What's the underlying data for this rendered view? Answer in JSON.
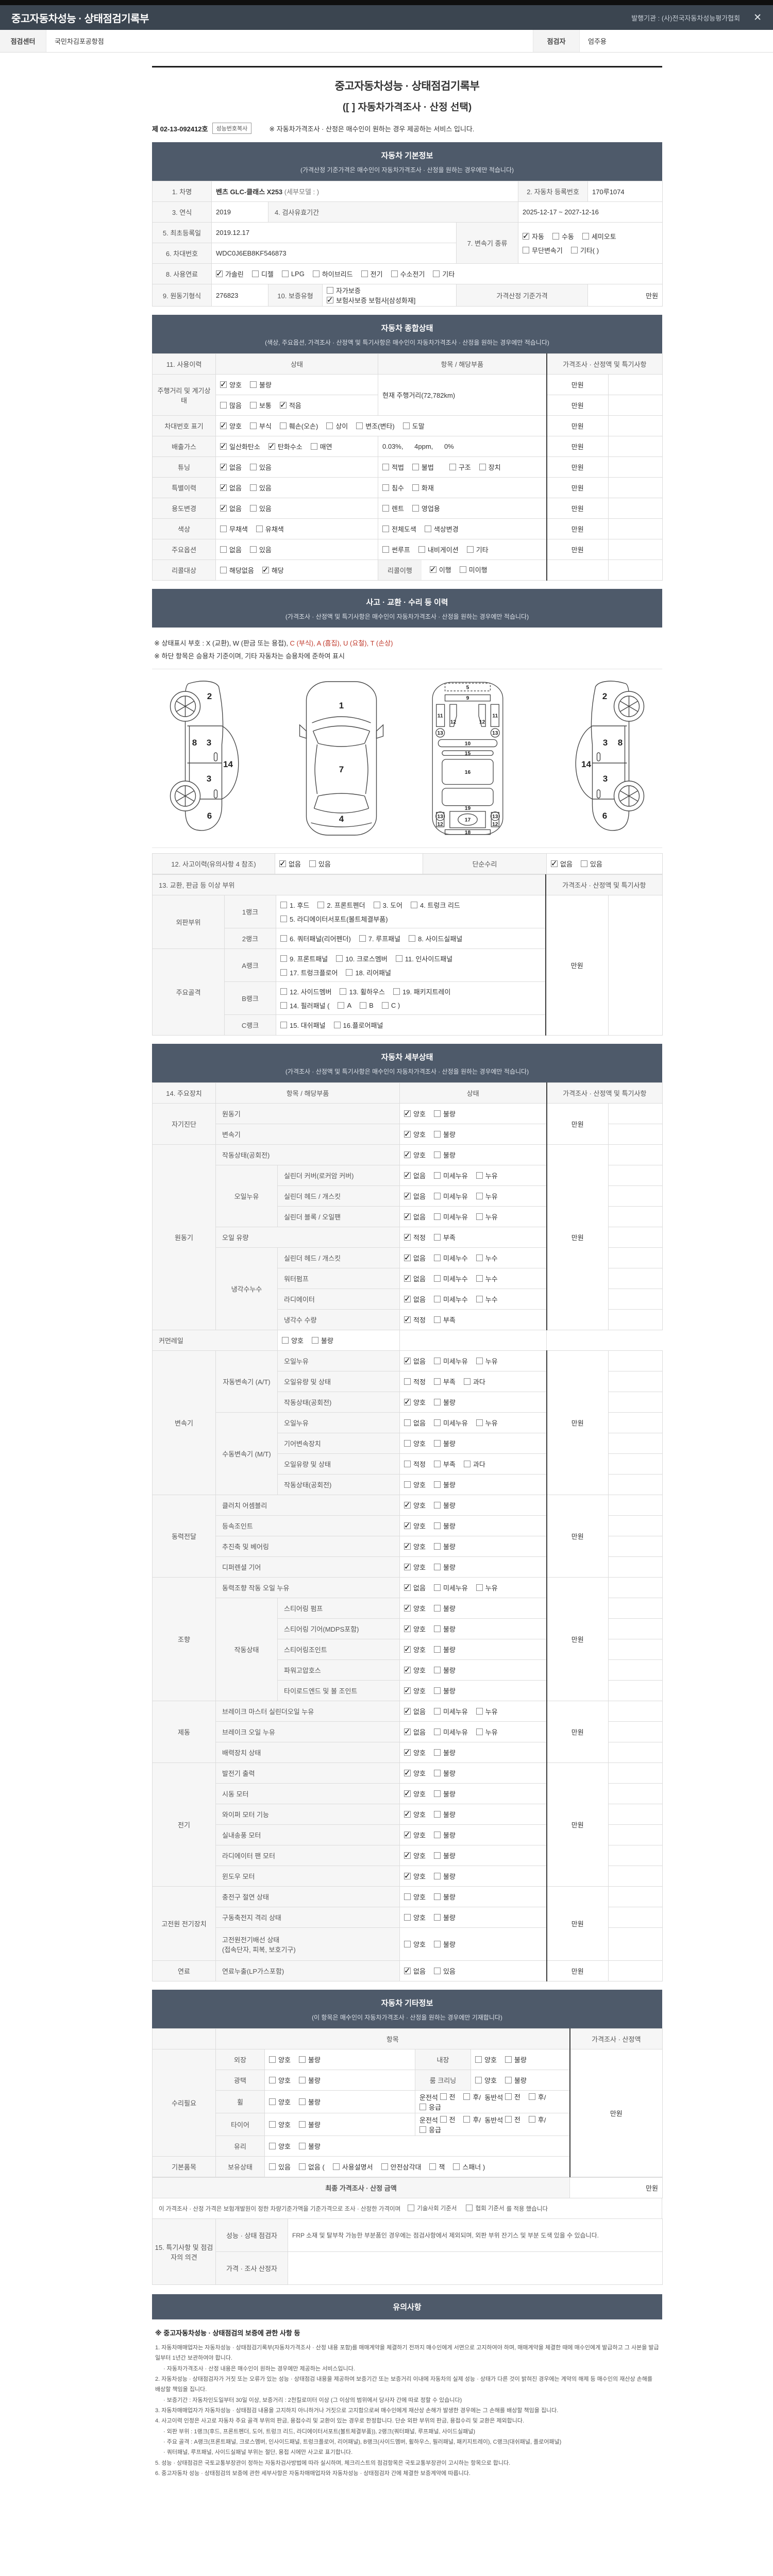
{
  "app": {
    "title": "중고자동차성능 · 상태점검기록부",
    "issuer": "발행기관 : (사)전국자동차성능평가협회",
    "close": "✕"
  },
  "toolbar": {
    "center_label": "점검센터",
    "center_value": "국민차김포공항점",
    "inspector_label": "점검자",
    "inspector_value": "엄주용"
  },
  "doc": {
    "title": "중고자동차성능 · 상태점검기록부",
    "subtitle": "([    ] 자동차가격조사 · 산정 선택)",
    "number": "제 02-13-092412호",
    "copy_btn": "성능번호복사",
    "notice": "※ 자동차가격조사 · 산정은 매수인이 원하는 경우 제공하는 서비스 입니다."
  },
  "basic": {
    "title": "자동차 기본정보",
    "subtitle": "(가격산정 기준가격은 매수인이 자동차가격조사 · 산정을 원하는 경우에만 적습니다)",
    "c1": "1. 차명",
    "v1": "벤츠 GLC-클래스 X253",
    "v1b": " (세부모델 : )",
    "c2": "2. 자동차 등록번호",
    "v2": "170루1074",
    "c3": "3. 연식",
    "v3": "2019",
    "c4": "4. 검사유효기간",
    "v4": "2025-12-17 ~ 2027-12-16",
    "c5": "5. 최초등록일",
    "v5": "2019.12.17",
    "c7": "7. 변속기 종류",
    "trans1": [
      {
        "t": "자동",
        "c": true
      },
      {
        "t": "수동",
        "c": false
      },
      {
        "t": "세미오토",
        "c": false
      }
    ],
    "trans2": [
      {
        "t": "무단변속기",
        "c": false
      },
      {
        "t": "기타( )",
        "c": false
      }
    ],
    "c6": "6. 차대번호",
    "v6": "WDC0J6EB8KF546873",
    "c8": "8. 사용연료",
    "fuel": [
      {
        "t": "가솔린",
        "c": true
      },
      {
        "t": "디젤",
        "c": false
      },
      {
        "t": "LPG",
        "c": false
      },
      {
        "t": "하이브리드",
        "c": false
      },
      {
        "t": "전기",
        "c": false
      },
      {
        "t": "수소전기",
        "c": false
      },
      {
        "t": "기타",
        "c": false
      }
    ],
    "c9": "9. 원동기형식",
    "v9": "276823",
    "c10": "10. 보증유형",
    "warranty": [
      {
        "t": "자가보증",
        "c": false
      },
      {
        "t": "보험사보증  보험사[삼성화재]",
        "c": true
      }
    ],
    "c11": "가격산정 기준가격",
    "v11": "만원"
  },
  "overall": {
    "title": "자동차 종합상태",
    "subtitle": "(색상, 주요옵션, 가격조사 · 산정액 및 특기사항은 매수인이 자동차가격조사 · 산정을 원하는 경우에만 적습니다)",
    "h1": "11. 사용이력",
    "h2": "상태",
    "h3": "항목 / 해당부품",
    "h4": "가격조사 · 산정액 및 특기사항",
    "manwon": "만원",
    "mileage_label": "주행거리 및 계기상태",
    "mileage1": [
      {
        "t": "양호",
        "c": true
      },
      {
        "t": "불량",
        "c": false
      }
    ],
    "mileage2": [
      {
        "t": "많음",
        "c": false
      },
      {
        "t": "보통",
        "c": false
      },
      {
        "t": "적음",
        "c": true
      }
    ],
    "mileage_item": "현재 주행거리(72,782km)",
    "vin_label": "차대번호 표기",
    "vin": [
      {
        "t": "양호",
        "c": true
      },
      {
        "t": "부식",
        "c": false
      },
      {
        "t": "훼손(오손)",
        "c": false
      },
      {
        "t": "상이",
        "c": false
      },
      {
        "t": "변조(변타)",
        "c": false
      },
      {
        "t": "도말",
        "c": false
      }
    ],
    "emission_label": "배출가스",
    "emission": [
      {
        "t": "일산화탄소",
        "c": true
      },
      {
        "t": "탄화수소",
        "c": true
      },
      {
        "t": "매연",
        "c": false
      }
    ],
    "emission_value": "0.03%,      4ppm,      0%",
    "tuning_label": "튜닝",
    "tuning1": [
      {
        "t": "없음",
        "c": true
      },
      {
        "t": "있음",
        "c": false
      }
    ],
    "tuning2": [
      {
        "t": "적법",
        "c": false
      },
      {
        "t": "불법",
        "c": false
      }
    ],
    "tuning3": [
      {
        "t": "구조",
        "c": false
      },
      {
        "t": "장치",
        "c": false
      }
    ],
    "special_label": "특별이력",
    "special1": [
      {
        "t": "없음",
        "c": true
      },
      {
        "t": "있음",
        "c": false
      }
    ],
    "special2": [
      {
        "t": "침수",
        "c": false
      },
      {
        "t": "화재",
        "c": false
      }
    ],
    "usage_label": "용도변경",
    "usage1": [
      {
        "t": "없음",
        "c": true
      },
      {
        "t": "있음",
        "c": false
      }
    ],
    "usage2": [
      {
        "t": "렌트",
        "c": false
      },
      {
        "t": "영업용",
        "c": false
      }
    ],
    "color_label": "색상",
    "color1": [
      {
        "t": "무채색",
        "c": false
      },
      {
        "t": "유채색",
        "c": false
      }
    ],
    "color2": [
      {
        "t": "전체도색",
        "c": false
      },
      {
        "t": "색상변경",
        "c": false
      }
    ],
    "option_label": "주요옵션",
    "option1": [
      {
        "t": "없음",
        "c": false
      },
      {
        "t": "있음",
        "c": false
      }
    ],
    "option2": [
      {
        "t": "썬루프",
        "c": false
      },
      {
        "t": "내비게이션",
        "c": false
      },
      {
        "t": "기타",
        "c": false
      }
    ],
    "recall_label": "리콜대상",
    "recall1": [
      {
        "t": "해당없음",
        "c": false
      },
      {
        "t": "해당",
        "c": true
      }
    ],
    "recall_sub": "리콜이행",
    "recall2": [
      {
        "t": "이행",
        "c": true
      },
      {
        "t": "미이행",
        "c": false
      }
    ]
  },
  "accident": {
    "title": "사고 · 교환 · 수리 등 이력",
    "subtitle": "(가격조사 · 산정액 및 특기사항은 매수인이 자동차가격조사 · 산정을 원하는 경우에만 적습니다)",
    "note1a": "※ 상태표시 부호 : X (교환), W (판금 또는 용접), ",
    "note1b": "C (부식), A (흠집), U (요철), T (손상)",
    "note2": "※ 하단 항목은 승용차 기준이며, 기타 자동차는 승용차에 준하여 표시",
    "r12_label": "12. 사고이력(유의사항 4 참조)",
    "acc": [
      {
        "t": "없음",
        "c": true
      },
      {
        "t": "있음",
        "c": false
      }
    ],
    "repair_label": "단순수리",
    "repair": [
      {
        "t": "없음",
        "c": true
      },
      {
        "t": "있음",
        "c": false
      }
    ],
    "r13_label": "13. 교환, 판금 등 이상 부위",
    "price_h": "가격조사 · 산정액 및 특기사항",
    "manwon": "만원",
    "outer_label": "외판부위",
    "frame_label": "주요골격",
    "rank1": "1랭크",
    "rank2": "2랭크",
    "rankA": "A랭크",
    "rankB": "B랭크",
    "rankC": "C랭크",
    "rank1a": [
      {
        "t": "1. 후드",
        "c": false
      },
      {
        "t": "2. 프론트펜더",
        "c": false
      },
      {
        "t": "3. 도어",
        "c": false
      },
      {
        "t": "4. 트렁크 리드",
        "c": false
      }
    ],
    "rank1b": [
      {
        "t": "5. 라디에이터서포트(볼트체결부품)",
        "c": false
      }
    ],
    "rank2a": [
      {
        "t": "6. 쿼터패널(리어펜더)",
        "c": false
      },
      {
        "t": "7. 루프패널",
        "c": false
      },
      {
        "t": "8. 사이드실패널",
        "c": false
      }
    ],
    "rankAa": [
      {
        "t": "9. 프론트패널",
        "c": false
      },
      {
        "t": "10. 크로스멤버",
        "c": false
      },
      {
        "t": "11. 인사이드패널",
        "c": false
      }
    ],
    "rankAb": [
      {
        "t": "17. 트렁크플로어",
        "c": false
      },
      {
        "t": "18. 리어패널",
        "c": false
      }
    ],
    "rankBa": [
      {
        "t": "12. 사이드멤버",
        "c": false
      },
      {
        "t": "13. 휠하우스",
        "c": false
      },
      {
        "t": "19. 패키지트레이",
        "c": false
      }
    ],
    "rankBb": [
      {
        "t": "14. 필러패널 (",
        "c": false
      },
      {
        "t": "A",
        "c": false
      },
      {
        "t": "B",
        "c": false
      },
      {
        "t": "C )",
        "c": false
      }
    ],
    "rankCa": [
      {
        "t": "15. 대쉬패널",
        "c": false
      },
      {
        "t": "16.플로어패널",
        "c": false
      }
    ]
  },
  "diag": {
    "sl": [
      "2",
      "8",
      "3",
      "3",
      "14",
      "6"
    ],
    "top": [
      "1",
      "7",
      "4"
    ],
    "ub": [
      "5",
      "9",
      "11",
      "11",
      "12",
      "12",
      "13",
      "13",
      "10",
      "15",
      "16",
      "19",
      "13",
      "13",
      "17",
      "12",
      "12",
      "18"
    ],
    "sr": [
      "2",
      "3",
      "8",
      "14",
      "3",
      "6"
    ]
  },
  "detail": {
    "title": "자동차 세부상태",
    "subtitle": "(가격조사 · 산정액 및 특기사항은 매수인이 자동차가격조사 · 산정을 원하는 경우에만 적습니다)",
    "h1": "14. 주요장치",
    "h2": "항목 / 해당부품",
    "h3": "상태",
    "h4": "가격조사 · 산정액 및 특기사항",
    "manwon": "만원",
    "o": {
      "gb": [
        {
          "t": "양호",
          "c": true
        },
        {
          "t": "불량",
          "c": false
        }
      ],
      "gbu": [
        {
          "t": "양호",
          "c": false
        },
        {
          "t": "불량",
          "c": false
        }
      ],
      "lk": [
        {
          "t": "없음",
          "c": true
        },
        {
          "t": "미세누유",
          "c": false
        },
        {
          "t": "누유",
          "c": false
        }
      ],
      "lku": [
        {
          "t": "없음",
          "c": false
        },
        {
          "t": "미세누유",
          "c": false
        },
        {
          "t": "누유",
          "c": false
        }
      ],
      "cl": [
        {
          "t": "없음",
          "c": true
        },
        {
          "t": "미세누수",
          "c": false
        },
        {
          "t": "누수",
          "c": false
        }
      ],
      "lv": [
        {
          "t": "적정",
          "c": true
        },
        {
          "t": "부족",
          "c": false
        }
      ],
      "lv3": [
        {
          "t": "적정",
          "c": false
        },
        {
          "t": "부족",
          "c": false
        },
        {
          "t": "과다",
          "c": false
        }
      ],
      "fl": [
        {
          "t": "없음",
          "c": true
        },
        {
          "t": "있음",
          "c": false
        }
      ]
    },
    "sd": {
      "lbl": "자기진단",
      "i1": "원동기",
      "i2": "변속기"
    },
    "eng": {
      "lbl": "원동기",
      "i1": "작동상태(공회전)",
      "oil": "오일누유",
      "o1": "실린더 커버(로커암 커버)",
      "o2": "실린더 헤드 / 개스킷",
      "o3": "실린더 블록 / 오일팬",
      "i2": "오일 유량",
      "cool": "냉각수누수",
      "c1": "실린더 헤드 / 개스킷",
      "c2": "워터펌프",
      "c3": "라디에이터",
      "c4": "냉각수 수량",
      "i3": "커먼레일"
    },
    "tr": {
      "lbl": "변속기",
      "at": "자동변속기 (A/T)",
      "a1": "오일누유",
      "a2": "오일유량 및 상태",
      "a3": "작동상태(공회전)",
      "mt": "수동변속기 (M/T)",
      "m1": "오일누유",
      "m2": "기어변속장치",
      "m3": "오일유량 및 상태",
      "m4": "작동상태(공회전)"
    },
    "pw": {
      "lbl": "동력전달",
      "i1": "클러치 어셈블리",
      "i2": "등속조인트",
      "i3": "추진축 및 베어링",
      "i4": "디퍼렌셜 기어"
    },
    "st": {
      "lbl": "조향",
      "i1": "동력조향 작동 오일 누유",
      "op": "작동상태",
      "s1": "스티어링 펌프",
      "s2": "스티어링 기어(MDPS포함)",
      "s3": "스티어링조인트",
      "s4": "파워고압호스",
      "s5": "타이로드엔드 및 볼 조인트"
    },
    "br": {
      "lbl": "제동",
      "i1": "브레이크 마스터 실린더오일 누유",
      "i2": "브레이크 오일 누유",
      "i3": "배력장치 상태"
    },
    "el": {
      "lbl": "전기",
      "i1": "발전기 출력",
      "i2": "시동 모터",
      "i3": "와이퍼 모터 기능",
      "i4": "실내송풍 모터",
      "i5": "라디에이터 팬 모터",
      "i6": "윈도우 모터"
    },
    "hv": {
      "lbl": "고전원 전기장치",
      "i1": "충전구 절연 상태",
      "i2": "구동축전지 격리 상태",
      "i3": "고전원전기배선 상태",
      "i3b": "(접속단자, 피복, 보호기구)"
    },
    "fu": {
      "lbl": "연료",
      "i1": "연료누출(LP가스포함)"
    }
  },
  "etc": {
    "title": "자동차 기타정보",
    "subtitle": "(이 항목은 매수인이 자동차가격조사 · 산정을 원하는 경우에만 기재합니다)",
    "h_item": "항목",
    "h_price": "가격조사 · 산정액",
    "manwon": "만원",
    "repair_label": "수리필요",
    "r1": "외장",
    "r2": "내장",
    "r3": "광택",
    "r4": "룸 크리닝",
    "r5": "휠",
    "r6": "타이어",
    "r7": "유리",
    "gb": [
      {
        "t": "양호",
        "c": false
      },
      {
        "t": "불량",
        "c": false
      }
    ],
    "pos_pre": "운전석",
    "pos_mid": "동반석",
    "slash": "/",
    "pos": [
      {
        "t": "전",
        "c": false
      },
      {
        "t": "후",
        "c": false
      }
    ],
    "pos2": [
      {
        "t": "전",
        "c": false
      },
      {
        "t": "후",
        "c": false
      }
    ],
    "emg": [
      {
        "t": "응급",
        "c": false
      }
    ],
    "basic_label": "기본품목",
    "hold_label": "보유상태",
    "hold": [
      {
        "t": "있음",
        "c": false
      },
      {
        "t": "없음 (",
        "c": false
      },
      {
        "t": "사용설명서",
        "c": false
      },
      {
        "t": "안전삼각대",
        "c": false
      },
      {
        "t": "잭",
        "c": false
      },
      {
        "t": "스패너 )",
        "c": false
      }
    ]
  },
  "final": {
    "label": "최종 가격조사 · 산정 금액",
    "value": "만원",
    "note_left": "이 가격조사 · 산정 가격은 보험개발원이 정한 차량기준가액을 기준가격으로 조사 · 산정한 가격이며",
    "note_opts": [
      {
        "t": "기술사회 기준서",
        "c": false
      },
      {
        "t": "협회 기준서",
        "c": false
      }
    ],
    "note_tail": "를 적용 했습니다"
  },
  "opinion": {
    "label": "15. 특기사항 및 점검자의 의견",
    "r1_label": "성능 · 상태 점검자",
    "r1_text": "FRP 소재 및 탈부착 가능한 부분품인 경우에는 점검사항에서 제외되며, 외판 부위 잔기스 및 부분 도색 있을 수 있습니다.",
    "r2_label": "가격 · 조사 산정자",
    "r2_text": ""
  },
  "notice": {
    "title": "유의사항",
    "heading": "※ 중고자동차성능 · 상태점검의 보증에 관한 사항 등",
    "items": [
      {
        "t": "1. 자동차매매업자는 자동차성능 · 상태점검기록부(자동차가격조사 · 산정 내용 포함)를 매매계약을 체결하기 전까지 매수인에게 서면으로 고지하여야 하며, 매매계약을 체결한 때에 매수인에게 발급하고 그 사본을 발급일부터 1년간 보관하여야 합니다.",
        "cls": ""
      },
      {
        "t": "· 자동차가격조사 · 산정 내용은 매수인이 원하는 경우에만 제공하는 서비스입니다.",
        "cls": "ind"
      },
      {
        "t": "2. 자동차성능 · 상태점검자가 거짓 또는 오류가 있는 성능 · 상태점검 내용을 제공하여 보증기간 또는 보증거리 이내에 자동차의 실제 성능 · 상태가 다른 것이 밝혀진 경우에는 계약의 해제 등 매수인의 재산상 손해를 배상할 책임을 집니다.",
        "cls": ""
      },
      {
        "t": "· 보증기간 : 자동차인도일부터 30일 이상, 보증거리 : 2천킬로미터 이상 (그 이상의 범위에서 당사자 간에 따로 정할 수 있습니다)",
        "cls": "ind"
      },
      {
        "t": "3. 자동차매매업자가 자동차성능 · 상태점검 내용을 고지하지 아니하거나 거짓으로 고지함으로써 매수인에게 재산상 손해가 발생한 경우에는 그 손해를 배상할 책임을 집니다.",
        "cls": ""
      },
      {
        "t": "4. 사고이력 인정은 사고로 자동차 주요 골격 부위의 판금, 용접수리 및 교환이 있는 경우로 한정합니다. 단순 외판 부위의 판금, 용접수리 및 교환은 제외합니다.",
        "cls": ""
      },
      {
        "t": "· 외판 부위 : 1랭크(후드, 프론트펜더, 도어, 트렁크 리드, 라디에이터서포트(볼트체결부품)), 2랭크(쿼터패널, 루프패널, 사이드실패널)",
        "cls": "ind"
      },
      {
        "t": "· 주요 골격 : A랭크(프론트패널, 크로스멤버, 인사이드패널, 트렁크플로어, 리어패널), B랭크(사이드멤버, 휠하우스, 필러패널, 패키지트레이), C랭크(대쉬패널, 플로어패널)",
        "cls": "ind"
      },
      {
        "t": "· 쿼터패널, 루프패널, 사이드실패널 부위는 절단, 용접 시에만 사고로 표기합니다.",
        "cls": "ind"
      },
      {
        "t": "5. 성능 · 상태점검은 국토교통부장관이 정하는 자동차검사방법에 따라 실시하며, 체크리스트의 점검항목은 국토교통부장관이 고시하는 항목으로 합니다.",
        "cls": ""
      },
      {
        "t": "6. 중고자동차 성능 · 상태점검의 보증에 관한 세부사항은 자동차매매업자와 자동차성능 · 상태점검자 간에 체결한 보증계약에 따릅니다.",
        "cls": ""
      }
    ]
  }
}
